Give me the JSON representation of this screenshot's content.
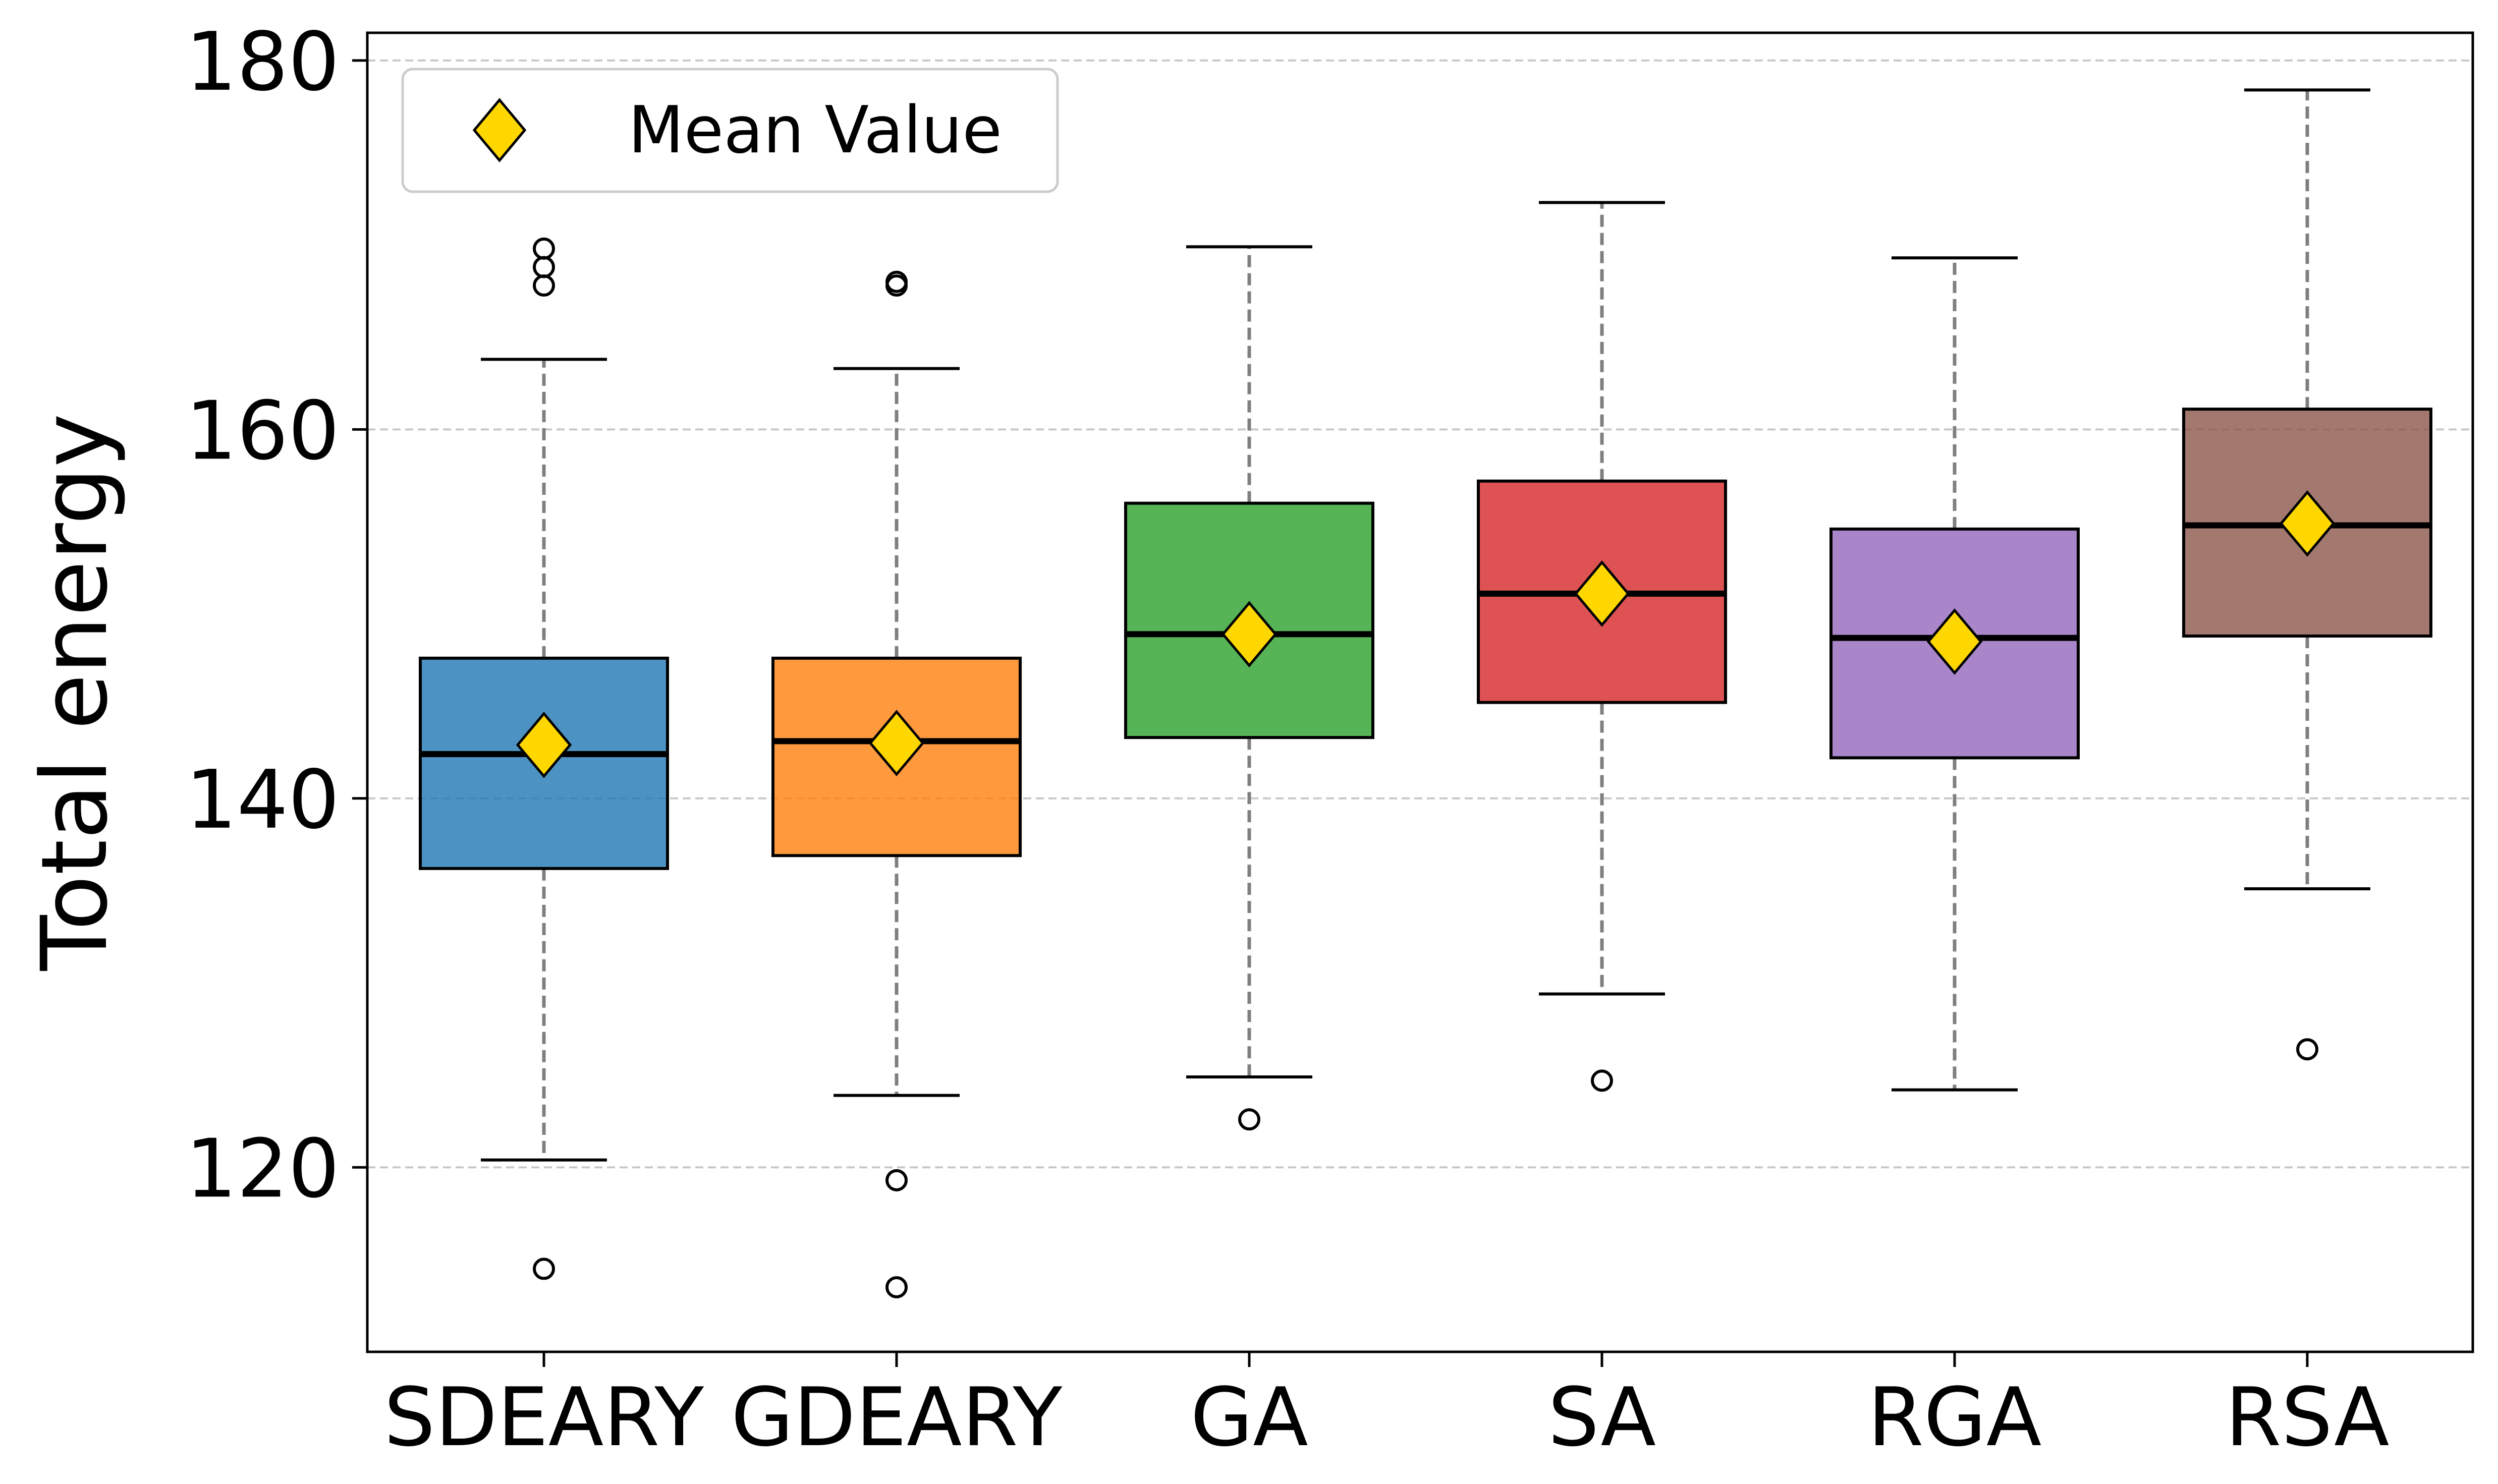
{
  "chart_data": {
    "type": "box",
    "title": "",
    "xlabel": "",
    "ylabel": "Total energy",
    "ylim": [
      110,
      181.5
    ],
    "yticks": [
      120,
      140,
      160,
      180
    ],
    "grid": "horizontal-dashed",
    "legend": {
      "placement": "top-left",
      "label": "Mean Value"
    },
    "categories": [
      "SDEARY",
      "GDEARY",
      "GA",
      "SA",
      "RGA",
      "RSA"
    ],
    "series": [
      {
        "name": "SDEARY",
        "color": "#1f77b4",
        "whisker_low": 120.4,
        "q1": 136.2,
        "median": 142.4,
        "q3": 147.6,
        "whisker_high": 163.8,
        "mean": 142.9,
        "outliers": [
          114.5,
          167.8,
          168.8,
          169.8
        ]
      },
      {
        "name": "GDEARY",
        "color": "#ff7f0e",
        "whisker_low": 123.9,
        "q1": 136.9,
        "median": 143.1,
        "q3": 147.6,
        "whisker_high": 163.3,
        "mean": 143.0,
        "outliers": [
          113.5,
          119.3,
          167.8,
          168.0
        ]
      },
      {
        "name": "GA",
        "color": "#2ca02c",
        "whisker_low": 124.9,
        "q1": 143.3,
        "median": 148.9,
        "q3": 156.0,
        "whisker_high": 169.9,
        "mean": 148.9,
        "outliers": [
          122.6
        ]
      },
      {
        "name": "SA",
        "color": "#d62728",
        "whisker_low": 129.4,
        "q1": 145.2,
        "median": 151.1,
        "q3": 157.2,
        "whisker_high": 172.3,
        "mean": 151.1,
        "outliers": [
          124.7
        ]
      },
      {
        "name": "RGA",
        "color": "#9467bd",
        "whisker_low": 124.2,
        "q1": 142.2,
        "median": 148.7,
        "q3": 154.6,
        "whisker_high": 169.3,
        "mean": 148.5,
        "outliers": []
      },
      {
        "name": "RSA",
        "color": "#8c564b",
        "whisker_low": 135.1,
        "q1": 148.8,
        "median": 154.8,
        "q3": 161.1,
        "whisker_high": 178.4,
        "mean": 154.9,
        "outliers": [
          126.4
        ]
      }
    ],
    "mean_marker": {
      "shape": "diamond",
      "color": "#ffd700"
    }
  }
}
